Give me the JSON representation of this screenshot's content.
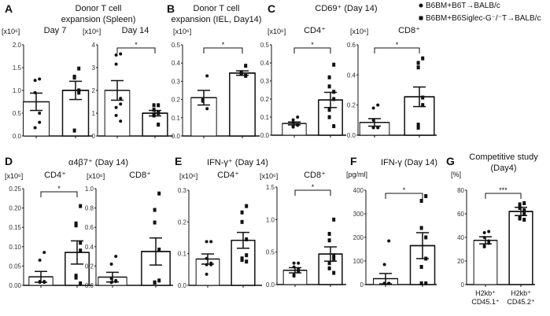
{
  "legend": [
    {
      "marker": "circle",
      "label": "B6BM+B6T→BALB/c"
    },
    {
      "marker": "square",
      "label": "B6BM+B6Siglec-G⁻/⁻T→BALB/c"
    }
  ],
  "colors": {
    "bar_fill": "#ffffff",
    "stroke": "#111111",
    "points": "#111111"
  },
  "headers": [
    {
      "label": "A",
      "title": [
        "Donor T cell",
        "expansion (Spleen)"
      ]
    },
    {
      "label": "B",
      "title": [
        "Donor T cell",
        "expansion (IEL, Day14)"
      ]
    },
    {
      "label": "C",
      "title": [
        "CD69⁺ (Day 14)"
      ]
    },
    {
      "label": "D",
      "title": [
        "α4β7⁺ (Day 14)"
      ]
    },
    {
      "label": "E",
      "title": [
        "IFN-γ⁺ (Day 14)"
      ]
    },
    {
      "label": "F",
      "title": [
        "IFN-γ (Day 14)"
      ]
    },
    {
      "label": "G",
      "title": [
        "Competitive study",
        "(Day4)"
      ]
    }
  ],
  "chart_data": [
    {
      "type": "bar",
      "panel": "A",
      "title": "Day 7",
      "ylabel": "[x10⁶]",
      "ylim": [
        0,
        2.0
      ],
      "yticks": [
        "0.0",
        "0.5",
        "1.0",
        "1.5",
        "2.0"
      ],
      "significance": "",
      "bars": [
        {
          "mean": 0.75,
          "sem": 0.19,
          "points": [
            1.25,
            1.22,
            0.95,
            0.5,
            0.3,
            0.18
          ]
        },
        {
          "mean": 1.0,
          "sem": 0.2,
          "points": [
            1.48,
            1.3,
            1.28,
            1.0,
            0.95,
            0.12
          ]
        }
      ]
    },
    {
      "type": "bar",
      "panel": "A",
      "title": "Day 14",
      "ylabel": "[x10⁶]",
      "ylim": [
        0,
        4
      ],
      "yticks": [
        "0",
        "1",
        "2",
        "3",
        "4"
      ],
      "significance": "*",
      "bars": [
        {
          "mean": 2.0,
          "sem": 0.43,
          "points": [
            3.6,
            3.55,
            3.15,
            1.65,
            1.4,
            1.25,
            0.9,
            0.65
          ]
        },
        {
          "mean": 1.0,
          "sem": 0.12,
          "points": [
            1.35,
            1.35,
            1.15,
            1.05,
            1.0,
            0.95,
            0.9,
            0.5
          ]
        }
      ]
    },
    {
      "type": "bar",
      "panel": "B",
      "title": "",
      "ylabel": "[x10⁶]",
      "ylim": [
        0,
        0.5
      ],
      "yticks": [
        "0.0",
        "0.1",
        "0.2",
        "0.3",
        "0.4",
        "0.5"
      ],
      "significance": "*",
      "bars": [
        {
          "mean": 0.21,
          "sem": 0.04,
          "points": [
            0.33,
            0.2,
            0.19,
            0.15
          ]
        },
        {
          "mean": 0.345,
          "sem": 0.012,
          "points": [
            0.385,
            0.35,
            0.34,
            0.33
          ]
        }
      ]
    },
    {
      "type": "bar",
      "panel": "C",
      "title": "CD4⁺",
      "ylabel": "[x10⁶]",
      "ylim": [
        0,
        0.5
      ],
      "yticks": [
        "0.0",
        "0.1",
        "0.2",
        "0.3",
        "0.4",
        "0.5"
      ],
      "significance": "*",
      "bars": [
        {
          "mean": 0.065,
          "sem": 0.008,
          "points": [
            0.1,
            0.085,
            0.07,
            0.06,
            0.055,
            0.05,
            0.045
          ]
        },
        {
          "mean": 0.195,
          "sem": 0.042,
          "points": [
            0.39,
            0.32,
            0.27,
            0.24,
            0.2,
            0.14,
            0.1,
            0.05
          ]
        }
      ]
    },
    {
      "type": "bar",
      "panel": "C",
      "title": "CD8⁺",
      "ylabel": "[x10⁶]",
      "ylim": [
        0,
        0.6
      ],
      "yticks": [
        "0.0",
        "0.2",
        "0.4",
        "0.6"
      ],
      "significance": "*",
      "bars": [
        {
          "mean": 0.085,
          "sem": 0.025,
          "points": [
            0.2,
            0.18,
            0.1,
            0.05,
            0.05,
            0.05,
            0.05
          ]
        },
        {
          "mean": 0.255,
          "sem": 0.065,
          "points": [
            0.51,
            0.48,
            0.45,
            0.25,
            0.2,
            0.07,
            0.05
          ]
        }
      ]
    },
    {
      "type": "bar",
      "panel": "D",
      "title": "CD4⁺",
      "ylabel": "[x10⁶]",
      "ylim": [
        0,
        0.25
      ],
      "yticks": [
        "0.00",
        "0.05",
        "0.10",
        "0.15",
        "0.20",
        "0.25"
      ],
      "significance": "*",
      "bars": [
        {
          "mean": 0.022,
          "sem": 0.014,
          "points": [
            0.085,
            0.065,
            0.01,
            0.01,
            0.008,
            0.008
          ]
        },
        {
          "mean": 0.085,
          "sem": 0.03,
          "points": [
            0.205,
            0.16,
            0.155,
            0.11,
            0.09,
            0.025,
            0.02,
            0.005
          ]
        }
      ]
    },
    {
      "type": "bar",
      "panel": "D",
      "title": "CD8⁺",
      "ylabel": "[x10⁶]",
      "ylim": [
        0,
        1.0
      ],
      "yticks": [
        "0.0",
        "0.2",
        "0.4",
        "0.6",
        "0.8",
        "1.0"
      ],
      "significance": "",
      "bars": [
        {
          "mean": 0.085,
          "sem": 0.05,
          "points": [
            0.3,
            0.22,
            0.07,
            0.05,
            0.04,
            0.03,
            0.03
          ]
        },
        {
          "mean": 0.35,
          "sem": 0.14,
          "points": [
            0.95,
            0.78,
            0.65,
            0.37,
            0.05,
            0.03,
            0.03
          ]
        }
      ]
    },
    {
      "type": "bar",
      "panel": "E",
      "title": "CD4⁺",
      "ylabel": "[x10⁶]",
      "ylim": [
        0,
        0.3
      ],
      "yticks": [
        "0.0",
        "0.1",
        "0.2",
        "0.3"
      ],
      "significance": "",
      "bars": [
        {
          "mean": 0.083,
          "sem": 0.016,
          "points": [
            0.138,
            0.138,
            0.085,
            0.07,
            0.065,
            0.065,
            0.035
          ]
        },
        {
          "mean": 0.142,
          "sem": 0.025,
          "points": [
            0.25,
            0.23,
            0.2,
            0.145,
            0.095,
            0.085,
            0.08,
            0.075
          ]
        }
      ]
    },
    {
      "type": "bar",
      "panel": "E",
      "title": "CD8⁺",
      "ylabel": "[x10⁶]",
      "ylim": [
        0,
        1.5
      ],
      "yticks": [
        "0.0",
        "0.5",
        "1.0",
        "1.5"
      ],
      "significance": "*",
      "bars": [
        {
          "mean": 0.22,
          "sem": 0.04,
          "points": [
            0.33,
            0.33,
            0.27,
            0.24,
            0.2,
            0.15,
            0.13
          ]
        },
        {
          "mean": 0.47,
          "sem": 0.11,
          "points": [
            1.0,
            0.78,
            0.68,
            0.45,
            0.4,
            0.33,
            0.25,
            0.18
          ]
        }
      ]
    },
    {
      "type": "bar",
      "panel": "F",
      "title": "",
      "ylabel": "[pg/ml]",
      "ylim": [
        0,
        400
      ],
      "yticks": [
        "0",
        "100",
        "200",
        "300",
        "400"
      ],
      "significance": "*",
      "bars": [
        {
          "mean": 25,
          "sem": 22,
          "points": [
            185,
            85,
            5,
            5,
            5,
            5,
            5,
            5,
            5
          ]
        },
        {
          "mean": 165,
          "sem": 55,
          "points": [
            375,
            355,
            240,
            200,
            110,
            75,
            5,
            5
          ]
        }
      ]
    },
    {
      "type": "bar",
      "panel": "G",
      "title": "",
      "ylabel": "[%]",
      "ylim": [
        0,
        80
      ],
      "yticks": [
        "0",
        "20",
        "40",
        "60",
        "80"
      ],
      "significance": "***",
      "categories": [
        [
          "H2kb⁺",
          "CD45.1⁺"
        ],
        [
          "H2kb⁺",
          "CD45.2⁺"
        ]
      ],
      "bars": [
        {
          "mean": 37.5,
          "sem": 3,
          "points": [
            45,
            44,
            40,
            37,
            35,
            33,
            32
          ]
        },
        {
          "mean": 62,
          "sem": 3.5,
          "points": [
            69,
            68,
            65,
            63,
            60,
            57,
            56,
            55
          ]
        }
      ]
    }
  ]
}
